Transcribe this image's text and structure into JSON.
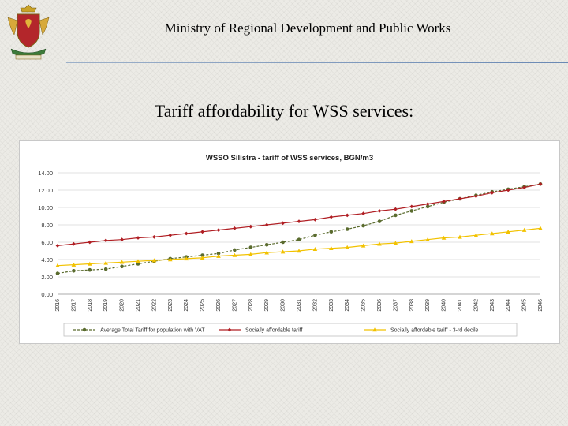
{
  "header": {
    "ministry": "Ministry of Regional Development and Public Works"
  },
  "slide": {
    "title": "Tariff affordability for WSS services:"
  },
  "crest_icon": "bulgarian-coat-of-arms-icon",
  "colors": {
    "series1": "#5a6b2e",
    "series2": "#b01e23",
    "series3": "#f2c200",
    "rule": "#6a89b4"
  },
  "chart_data": {
    "type": "line",
    "title": "WSSO Silistra - tariff of WSS services, BGN/m3",
    "xlabel": "",
    "ylabel": "",
    "ylim": [
      0,
      14
    ],
    "yticks": [
      "0.00",
      "2.00",
      "4.00",
      "6.00",
      "8.00",
      "10.00",
      "12.00",
      "14.00"
    ],
    "grid": true,
    "legend": "bottom",
    "x": [
      "2016",
      "2017",
      "2018",
      "2019",
      "2020",
      "2021",
      "2022",
      "2023",
      "2024",
      "2025",
      "2026",
      "2027",
      "2028",
      "2029",
      "2030",
      "2031",
      "2032",
      "2033",
      "2034",
      "2035",
      "2036",
      "2037",
      "2038",
      "2039",
      "2040",
      "2041",
      "2042",
      "2043",
      "2044",
      "2045",
      "2046"
    ],
    "series": [
      {
        "name": "Average Total Tariff for population with VAT",
        "marker": "circle",
        "dashed": true,
        "values": [
          2.4,
          2.7,
          2.8,
          2.9,
          3.2,
          3.5,
          3.8,
          4.1,
          4.3,
          4.5,
          4.7,
          5.1,
          5.4,
          5.7,
          6.0,
          6.3,
          6.8,
          7.2,
          7.5,
          7.9,
          8.4,
          9.1,
          9.6,
          10.1,
          10.6,
          11.0,
          11.4,
          11.8,
          12.1,
          12.4,
          12.7
        ]
      },
      {
        "name": "Socially affordable tariff",
        "marker": "diamond",
        "dashed": false,
        "values": [
          5.6,
          5.8,
          6.0,
          6.2,
          6.3,
          6.5,
          6.6,
          6.8,
          7.0,
          7.2,
          7.4,
          7.6,
          7.8,
          8.0,
          8.2,
          8.4,
          8.6,
          8.9,
          9.1,
          9.3,
          9.6,
          9.8,
          10.1,
          10.4,
          10.7,
          11.0,
          11.3,
          11.7,
          12.0,
          12.3,
          12.7
        ]
      },
      {
        "name": "Socially affordable tariff - 3-rd decile",
        "marker": "triangle",
        "dashed": false,
        "values": [
          3.3,
          3.4,
          3.5,
          3.6,
          3.7,
          3.8,
          3.9,
          4.0,
          4.1,
          4.2,
          4.4,
          4.5,
          4.6,
          4.8,
          4.9,
          5.0,
          5.2,
          5.3,
          5.4,
          5.6,
          5.8,
          5.9,
          6.1,
          6.3,
          6.5,
          6.6,
          6.8,
          7.0,
          7.2,
          7.4,
          7.6
        ]
      }
    ]
  }
}
